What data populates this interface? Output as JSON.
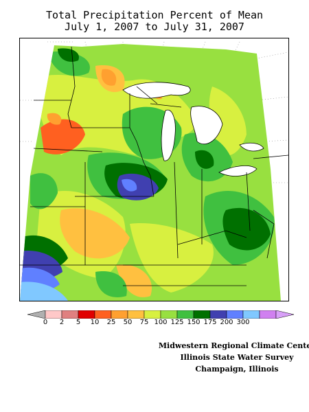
{
  "title": {
    "line1": "Total Precipitation Percent of Mean",
    "line2": "July 1, 2007 to July 31, 2007"
  },
  "legend": {
    "labels": [
      "0",
      "2",
      "5",
      "10",
      "25",
      "50",
      "75",
      "100",
      "125",
      "150",
      "175",
      "200",
      "300"
    ],
    "colors": [
      "#ffc8c8",
      "#e08080",
      "#e00000",
      "#ff6020",
      "#ffa030",
      "#ffc040",
      "#d8f040",
      "#98e040",
      "#40c040",
      "#007000",
      "#4040b0",
      "#6080ff",
      "#80c8ff",
      "#d080f0"
    ],
    "arrow_colors": {
      "low": "#b0b0b0",
      "high": "#d8a0f8"
    }
  },
  "credit": {
    "line1": "Midwestern Regional Climate Center",
    "line2": "Illinois State Water Survey",
    "line3": "Champaign, Illinois"
  },
  "map": {
    "region": "Midwest United States",
    "colors": {
      "background": "#98e040",
      "dry_orange": "#ff6020",
      "dry_light_orange": "#ffa030",
      "yellow": "#ffc040",
      "yellow_green": "#d8f040",
      "green": "#40c040",
      "dark_green": "#007000",
      "dark_blue": "#4040b0",
      "medium_blue": "#6080ff",
      "light_blue": "#80c8ff",
      "lake": "#ffffff",
      "border": "#000000"
    }
  }
}
